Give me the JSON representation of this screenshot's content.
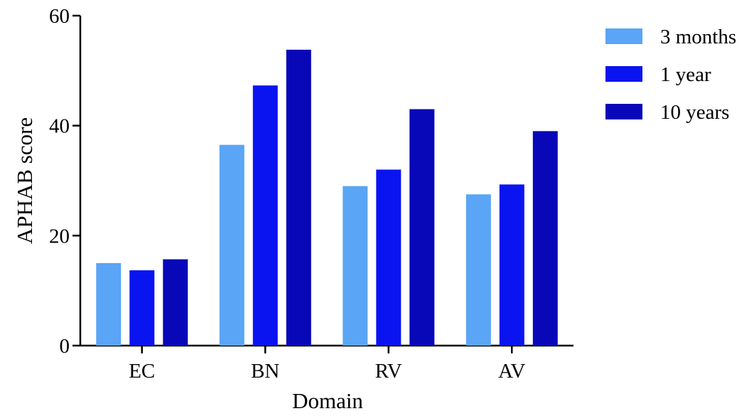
{
  "chart_data": {
    "type": "bar",
    "title": "",
    "xlabel": "Domain",
    "ylabel": "APHAB score",
    "categories": [
      "EC",
      "BN",
      "RV",
      "AV"
    ],
    "ylim": [
      0,
      60
    ],
    "yticks": [
      "0",
      "20",
      "40",
      "60"
    ],
    "series": [
      {
        "name": "3 months",
        "color": "#5aa5f5",
        "values": [
          15.0,
          36.5,
          29.0,
          27.5
        ]
      },
      {
        "name": "1 year",
        "color": "#0a14f0",
        "values": [
          13.7,
          47.3,
          32.0,
          29.3
        ]
      },
      {
        "name": "10 years",
        "color": "#0808b8",
        "values": [
          15.7,
          53.8,
          43.0,
          39.0
        ]
      }
    ],
    "grid": false,
    "legend_position": "top-right"
  }
}
